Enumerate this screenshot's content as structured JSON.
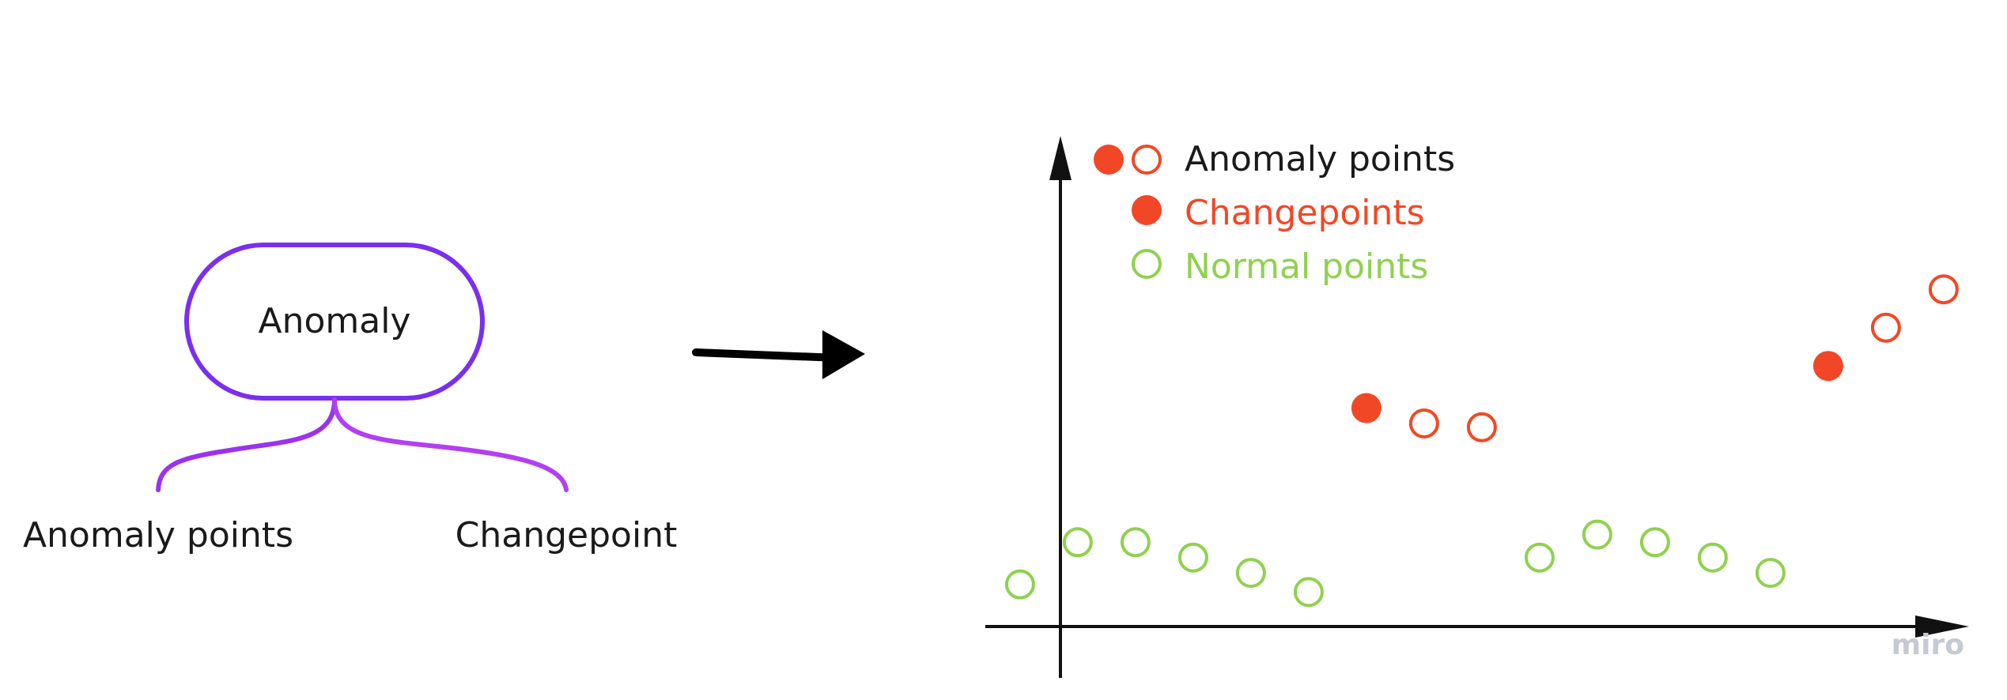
{
  "mindmap": {
    "root_label": "Anomaly",
    "branches": [
      {
        "label": "Anomaly points"
      },
      {
        "label": "Changepoint"
      }
    ]
  },
  "legend": {
    "items": [
      {
        "label": "Anomaly points",
        "marker": "filled-and-hollow",
        "color": "#f24726"
      },
      {
        "label": "Changepoints",
        "marker": "filled",
        "color": "#f24726"
      },
      {
        "label": "Normal points",
        "marker": "hollow",
        "color": "#8fd14f"
      }
    ]
  },
  "colors": {
    "mindmap_purple": "#7a2ff0",
    "mindmap_purple_light": "#b23ff0",
    "anomaly_red": "#f24726",
    "normal_green": "#8fd14f",
    "axis_black": "#111111"
  },
  "chart_data": {
    "type": "scatter",
    "title": "",
    "xlabel": "",
    "ylabel": "",
    "xlim": [
      0,
      17
    ],
    "ylim": [
      0,
      10
    ],
    "grid": false,
    "legend_position": "top-left",
    "series": [
      {
        "name": "Normal points",
        "marker": "hollow",
        "color": "#8fd14f",
        "points": [
          [
            -0.7,
            1.1
          ],
          [
            0.3,
            2.2
          ],
          [
            1.3,
            2.2
          ],
          [
            2.3,
            1.8
          ],
          [
            3.3,
            1.4
          ],
          [
            4.3,
            0.9
          ],
          [
            8.3,
            1.8
          ],
          [
            9.3,
            2.4
          ],
          [
            10.3,
            2.2
          ],
          [
            11.3,
            1.8
          ],
          [
            12.3,
            1.4
          ]
        ]
      },
      {
        "name": "Changepoints",
        "marker": "filled",
        "color": "#f24726",
        "points": [
          [
            5.3,
            5.7
          ],
          [
            13.3,
            6.8
          ]
        ]
      },
      {
        "name": "Anomaly points",
        "marker": "hollow",
        "color": "#f24726",
        "points": [
          [
            6.3,
            5.3
          ],
          [
            7.3,
            5.2
          ],
          [
            14.3,
            7.8
          ],
          [
            15.3,
            8.8
          ]
        ]
      }
    ]
  },
  "watermark": {
    "text": "miro"
  }
}
